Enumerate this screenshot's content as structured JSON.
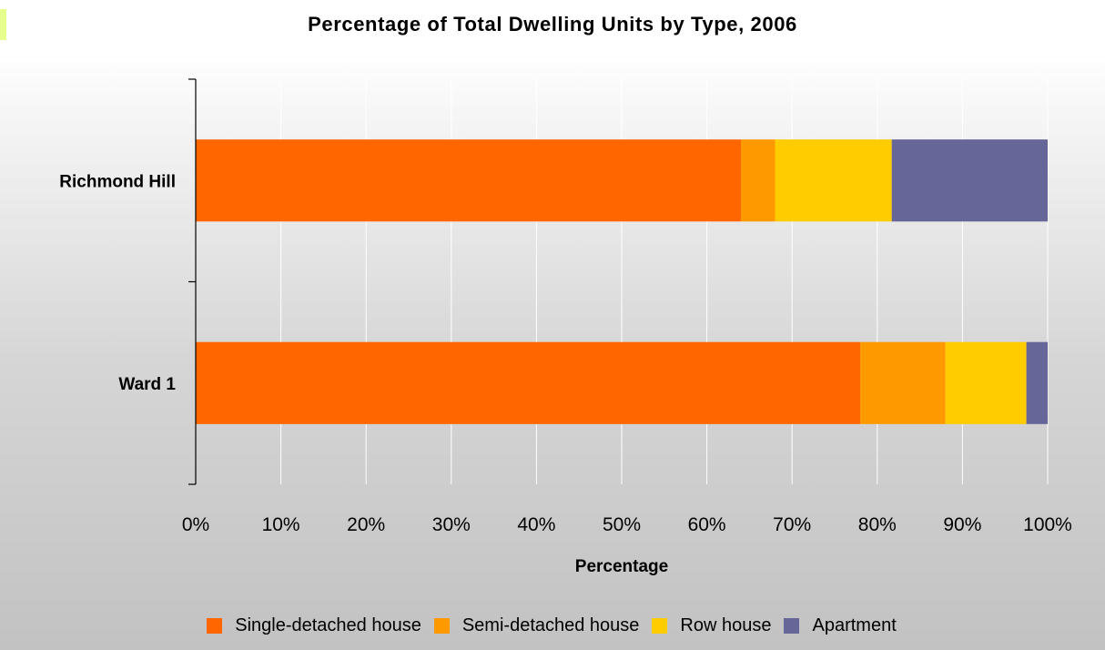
{
  "chart_data": {
    "type": "bar",
    "orientation": "horizontal",
    "stacked": true,
    "title": "Percentage of Total Dwelling Units by Type, 2006",
    "xlabel": "Percentage",
    "ylabel": "",
    "xlim": [
      0,
      100
    ],
    "x_ticks": [
      "0%",
      "10%",
      "20%",
      "30%",
      "40%",
      "50%",
      "60%",
      "70%",
      "80%",
      "90%",
      "100%"
    ],
    "categories": [
      "Richmond Hill",
      "Ward 1"
    ],
    "series": [
      {
        "name": "Single-detached house",
        "color": "#ff6600",
        "values": [
          64,
          78
        ]
      },
      {
        "name": "Semi-detached house",
        "color": "#ff9900",
        "values": [
          4,
          10
        ]
      },
      {
        "name": "Row house",
        "color": "#ffcc00",
        "values": [
          13.7,
          9.5
        ]
      },
      {
        "name": "Apartment",
        "color": "#666699",
        "values": [
          18.3,
          2.5
        ]
      }
    ],
    "grid": true,
    "legend_position": "bottom"
  }
}
